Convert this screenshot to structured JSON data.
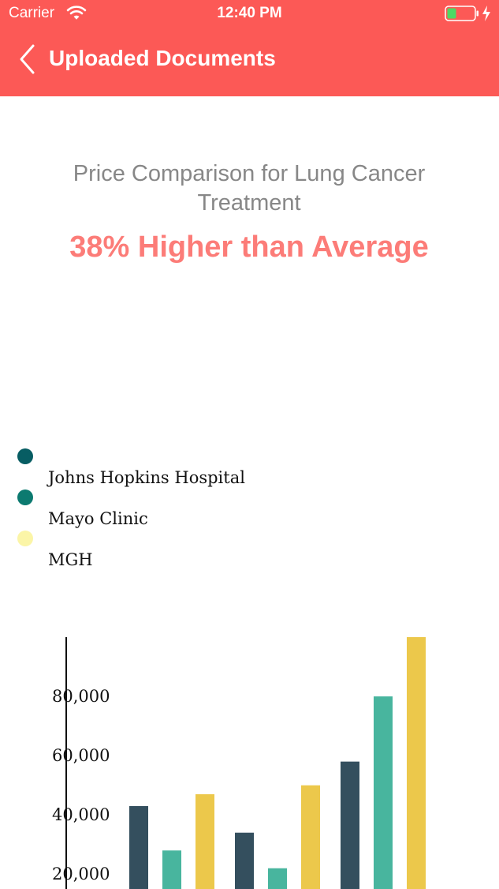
{
  "status_bar": {
    "carrier": "Carrier",
    "time": "12:40 PM",
    "battery_color": "#4cd964"
  },
  "nav": {
    "title": "Uploaded Documents",
    "back_icon": "chevron-left-icon",
    "background_color": "#fc5956"
  },
  "summary": {
    "headline": "Price Comparison for Lung Cancer Treatment",
    "highlight": "38% Higher than Average",
    "highlight_color": "#fc7c78"
  },
  "legend": {
    "items": [
      {
        "label": "",
        "color": "#075d63"
      },
      {
        "label": "Johns Hopkins Hospital",
        "color": "#0c7a70"
      },
      {
        "label": "Mayo Clinic",
        "color": "#fbf5a7"
      },
      {
        "label": "MGH",
        "color": ""
      }
    ]
  },
  "chart_data": {
    "type": "bar",
    "categories": [
      "",
      "",
      ""
    ],
    "series": [
      {
        "color": "#344f5e",
        "values": [
          43000,
          34000,
          58000
        ]
      },
      {
        "color": "#48b59e",
        "values": [
          28000,
          22000,
          80000
        ]
      },
      {
        "color": "#ecc84b",
        "values": [
          47000,
          50000,
          100000
        ]
      }
    ],
    "y_ticks": [
      20000,
      40000,
      60000,
      80000
    ],
    "y_tick_labels": [
      "20,000",
      "40,000",
      "60,000",
      "80,000"
    ],
    "ylim": [
      15000,
      100000
    ],
    "grid": false
  }
}
